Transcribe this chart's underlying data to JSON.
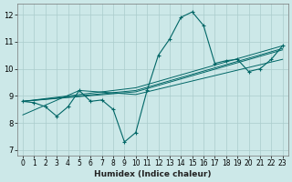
{
  "xlabel": "Humidex (Indice chaleur)",
  "bg_color": "#cce8e8",
  "line_color": "#006666",
  "grid_color": "#aacccc",
  "xlim": [
    -0.5,
    23.5
  ],
  "ylim": [
    6.8,
    12.4
  ],
  "xticks": [
    0,
    1,
    2,
    3,
    4,
    5,
    6,
    7,
    8,
    9,
    10,
    11,
    12,
    13,
    14,
    15,
    16,
    17,
    18,
    19,
    20,
    21,
    22,
    23
  ],
  "yticks": [
    7,
    8,
    9,
    10,
    11,
    12
  ],
  "main_curve": {
    "x": [
      0,
      1,
      2,
      3,
      4,
      5,
      6,
      7,
      8,
      9,
      10,
      11,
      12,
      13,
      14,
      15,
      16,
      17,
      18,
      19,
      20,
      21,
      22,
      23
    ],
    "y": [
      8.8,
      8.75,
      8.6,
      8.25,
      8.6,
      9.2,
      8.8,
      8.85,
      8.5,
      7.3,
      7.65,
      9.2,
      10.5,
      11.1,
      11.9,
      12.1,
      11.6,
      10.2,
      10.3,
      10.35,
      9.9,
      10.0,
      10.35,
      10.85
    ]
  },
  "trend_lines": [
    {
      "x": [
        0,
        10,
        23
      ],
      "y": [
        8.8,
        9.2,
        10.75
      ]
    },
    {
      "x": [
        0,
        10,
        23
      ],
      "y": [
        8.8,
        9.3,
        10.85
      ]
    },
    {
      "x": [
        0,
        10,
        23
      ],
      "y": [
        8.8,
        9.15,
        10.7
      ]
    },
    {
      "x": [
        0,
        5,
        10,
        23
      ],
      "y": [
        8.3,
        9.2,
        9.05,
        10.35
      ]
    }
  ]
}
